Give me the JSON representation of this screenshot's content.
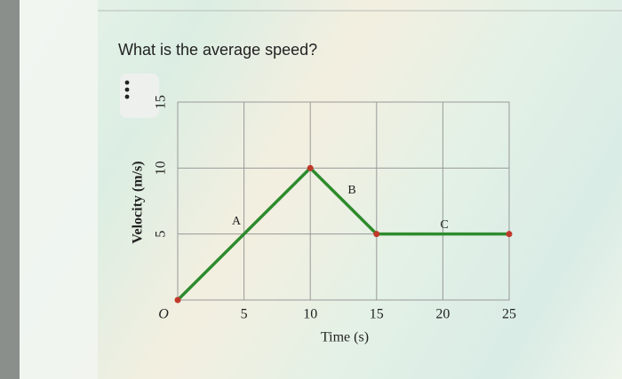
{
  "question": "What is the average speed?",
  "chart_data": {
    "type": "line",
    "xlabel": "Time (s)",
    "ylabel": "Velocity (m/s)",
    "x": [
      0,
      10,
      15,
      25
    ],
    "values": [
      0,
      10,
      5,
      5
    ],
    "color": "#2e8b2e",
    "marker_color": "#c0392b",
    "xlim": [
      0,
      25
    ],
    "ylim": [
      0,
      15
    ],
    "xticks": [
      {
        "value": 0,
        "label": "O"
      },
      5,
      10,
      15,
      20,
      25
    ],
    "yticks": [
      5,
      10,
      15
    ],
    "grid": true,
    "annotations": [
      "A",
      "B",
      "C"
    ]
  }
}
